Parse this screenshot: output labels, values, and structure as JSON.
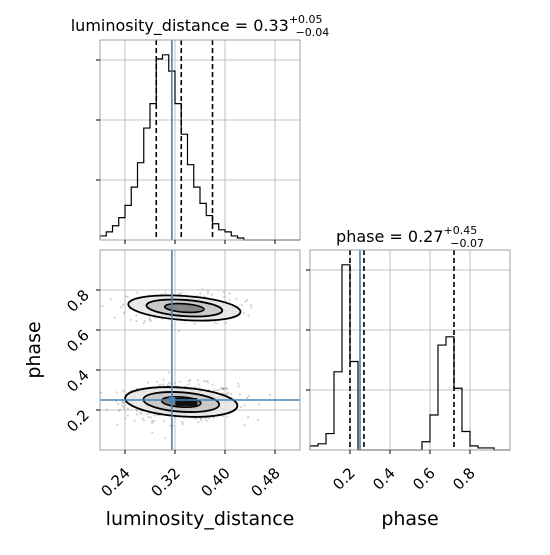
{
  "chart_data": [
    {
      "type": "histogram",
      "panel": "luminosity_distance marginal",
      "title": {
        "param": "luminosity_distance",
        "value": "0.33",
        "plus": "+0.05",
        "minus": "−0.04"
      },
      "xlim": [
        0.2,
        0.52
      ],
      "bins": {
        "edges_start": 0.2,
        "bin_width": 0.01,
        "counts": [
          2,
          4,
          7,
          11,
          17,
          26,
          38,
          55,
          67,
          89,
          91,
          83,
          67,
          52,
          37,
          26,
          18,
          12,
          8,
          5,
          4,
          2,
          1,
          0,
          0
        ]
      },
      "quantiles": [
        0.29,
        0.33,
        0.38
      ],
      "truth": 0.315,
      "grid": true
    },
    {
      "type": "histogram",
      "panel": "phase marginal",
      "title": {
        "param": "phase",
        "value": "0.27",
        "plus": "+0.45",
        "minus": "−0.07"
      },
      "xlim": [
        0.0,
        1.0
      ],
      "bins": {
        "edges_start": 0.0,
        "bin_width": 0.04,
        "counts": [
          2,
          3,
          8,
          38,
          90,
          43,
          0,
          0,
          0,
          0,
          0,
          0,
          0,
          0,
          4,
          17,
          51,
          55,
          30,
          9,
          2,
          1,
          1,
          0,
          0
        ]
      },
      "quantiles": [
        0.2,
        0.27,
        0.72
      ],
      "truth": 0.25,
      "grid": true
    },
    {
      "type": "scatter_contour",
      "panel": "phase vs luminosity_distance",
      "xlabel": "luminosity_distance",
      "ylabel": "phase",
      "xlim": [
        0.2,
        0.52
      ],
      "ylim": [
        0.0,
        1.0
      ],
      "xticks": [
        "0.24",
        "0.32",
        "0.40",
        "0.48"
      ],
      "yticks": [
        "0.2",
        "0.4",
        "0.6",
        "0.8"
      ],
      "truth": [
        0.315,
        0.25
      ],
      "modes": [
        {
          "center": [
            0.33,
            0.24
          ],
          "sx": 0.045,
          "sy": 0.045,
          "weight": 0.68
        },
        {
          "center": [
            0.335,
            0.71
          ],
          "sx": 0.045,
          "sy": 0.04,
          "weight": 0.32
        }
      ],
      "grid": true
    }
  ],
  "phase_axis": {
    "xlabel": "phase",
    "xticks": [
      "0.2",
      "0.4",
      "0.6",
      "0.8"
    ]
  },
  "colors": {
    "truth": "#4682b4",
    "hist": "#000000",
    "grid": "#b0b0b0",
    "scatter": "#9a9a9a"
  }
}
